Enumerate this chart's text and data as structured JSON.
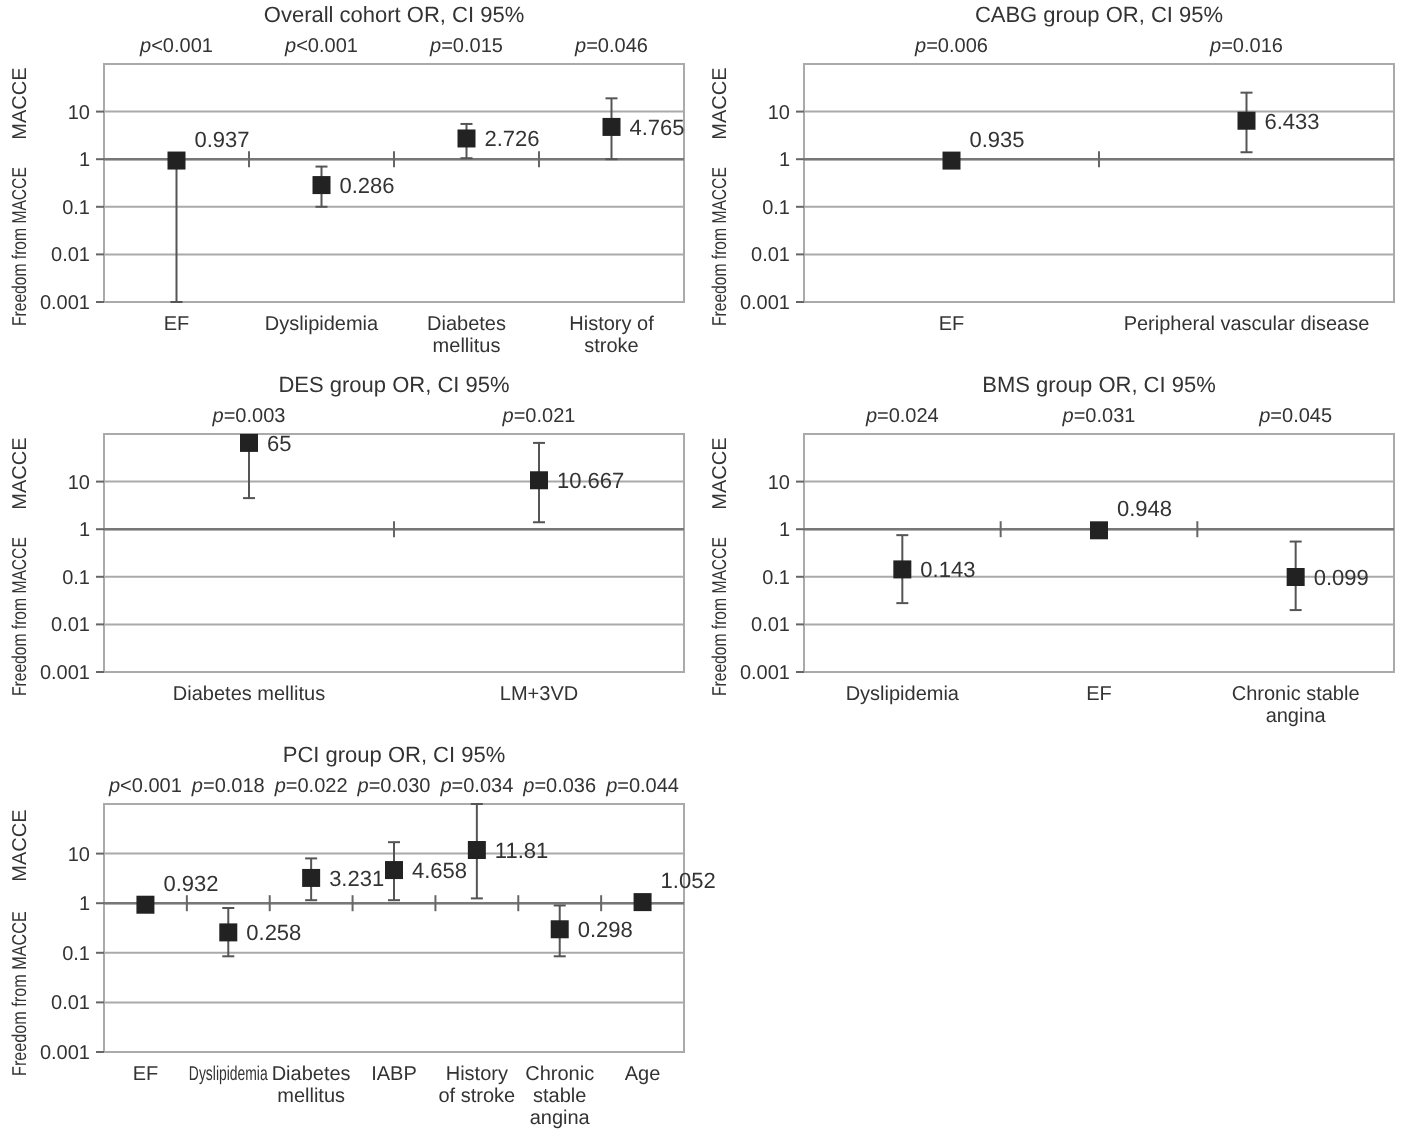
{
  "chart_data": [
    {
      "type": "scatter",
      "title": "Overall cohort OR, CI 95%",
      "ylabel": "Freedom from MACCE",
      "categories": [
        "EF",
        "Dyslipidemia",
        "Diabetes mellitus",
        "History of stroke"
      ],
      "series": [
        {
          "color": "#222222",
          "values": [
            0.937,
            0.286,
            2.726,
            4.765
          ],
          "errors": [
            [
              0.001,
              1
            ],
            [
              0.1,
              0.7
            ],
            [
              1.05,
              5.5
            ],
            [
              1,
              19
            ]
          ]
        }
      ],
      "data_labels": true,
      "marker": "square",
      "log": true,
      "ylim": [
        0.001,
        100
      ],
      "yticks": [
        0.001,
        0.01,
        0.1,
        1,
        10
      ],
      "grid": "y",
      "ref_lines": [
        {
          "axis": "y",
          "value": 1,
          "color": "#777777"
        }
      ],
      "annotations": [
        "p<0.001",
        "p<0.001",
        "p=0.015",
        "p=0.046",
        "MACCE"
      ]
    },
    {
      "type": "scatter",
      "title": "CABG group OR, CI 95%",
      "ylabel": "Freedom from MACCE",
      "categories": [
        "EF",
        "Peripheral vascular disease"
      ],
      "series": [
        {
          "color": "#222222",
          "values": [
            0.935,
            6.433
          ],
          "errors": [
            null,
            [
              1.4,
              25
            ]
          ]
        }
      ],
      "data_labels": true,
      "marker": "square",
      "log": true,
      "ylim": [
        0.001,
        100
      ],
      "yticks": [
        0.001,
        0.01,
        0.1,
        1,
        10
      ],
      "grid": "y",
      "ref_lines": [
        {
          "axis": "y",
          "value": 1,
          "color": "#777777"
        }
      ],
      "annotations": [
        "p=0.006",
        "p=0.016",
        "MACCE"
      ]
    },
    {
      "type": "scatter",
      "title": "DES group OR, CI 95%",
      "ylabel": "Freedom from MACCE",
      "categories": [
        "Diabetes mellitus",
        "LM+3VD"
      ],
      "series": [
        {
          "color": "#222222",
          "values": [
            65,
            10.667
          ],
          "errors": [
            [
              4.5,
              65
            ],
            [
              1.4,
              65
            ]
          ]
        }
      ],
      "data_labels": true,
      "marker": "square",
      "log": true,
      "ylim": [
        0.001,
        100
      ],
      "yticks": [
        0.001,
        0.01,
        0.1,
        1,
        10
      ],
      "grid": "y",
      "ref_lines": [
        {
          "axis": "y",
          "value": 1,
          "color": "#777777"
        }
      ],
      "annotations": [
        "p=0.003",
        "p=0.021",
        "MACCE"
      ]
    },
    {
      "type": "scatter",
      "title": "BMS group OR, CI 95%",
      "ylabel": "Freedom from MACCE",
      "categories": [
        "Dyslipidemia",
        "EF",
        "Chronic stable angina"
      ],
      "series": [
        {
          "color": "#222222",
          "values": [
            0.143,
            0.948,
            0.099
          ],
          "errors": [
            [
              0.028,
              0.75
            ],
            null,
            [
              0.02,
              0.55
            ]
          ]
        }
      ],
      "data_labels": true,
      "marker": "square",
      "log": true,
      "ylim": [
        0.001,
        100
      ],
      "yticks": [
        0.001,
        0.01,
        0.1,
        1,
        10
      ],
      "grid": "y",
      "ref_lines": [
        {
          "axis": "y",
          "value": 1,
          "color": "#777777"
        }
      ],
      "annotations": [
        "p=0.024",
        "p=0.031",
        "p=0.045",
        "MACCE"
      ]
    },
    {
      "type": "scatter",
      "title": "PCI group OR, CI 95%",
      "ylabel": "Freedom from MACCE",
      "categories": [
        "EF",
        "Dyslipidemia",
        "Diabetes mellitus",
        "IABP",
        "History of stroke",
        "Chronic stable angina",
        "Age"
      ],
      "series": [
        {
          "color": "#222222",
          "values": [
            0.932,
            0.258,
            3.231,
            4.658,
            11.81,
            0.298,
            1.052
          ],
          "errors": [
            null,
            [
              0.085,
              0.8
            ],
            [
              1.15,
              8
            ],
            [
              1.15,
              17
            ],
            [
              1.25,
              100
            ],
            [
              0.085,
              0.9
            ],
            null
          ]
        }
      ],
      "data_labels": true,
      "marker": "square",
      "log": true,
      "ylim": [
        0.001,
        100
      ],
      "yticks": [
        0.001,
        0.01,
        0.1,
        1,
        10
      ],
      "grid": "y",
      "ref_lines": [
        {
          "axis": "y",
          "value": 1,
          "color": "#777777"
        }
      ],
      "annotations": [
        "p<0.001",
        "p=0.018",
        "p=0.022",
        "p=0.030",
        "p=0.034",
        "p=0.036",
        "p=0.044",
        "MACCE"
      ]
    }
  ]
}
